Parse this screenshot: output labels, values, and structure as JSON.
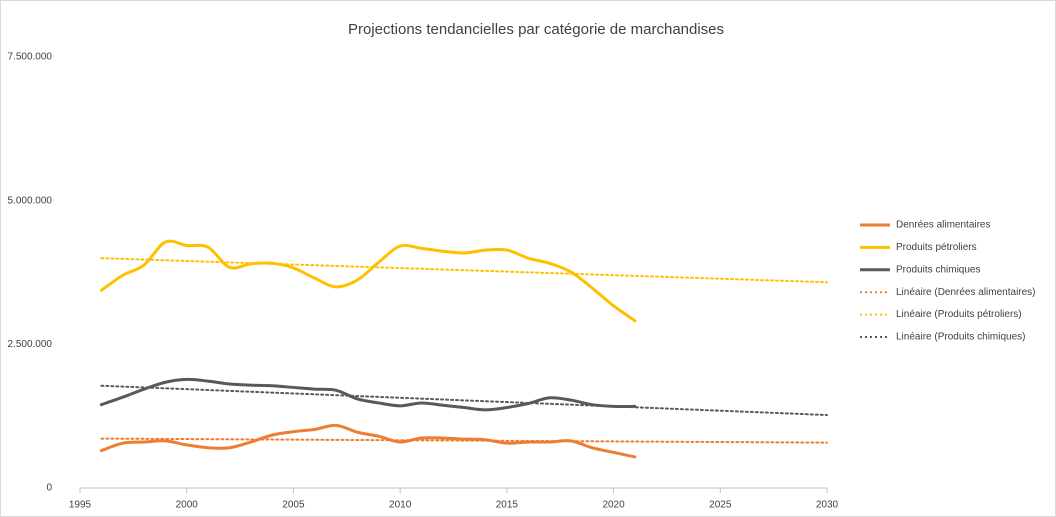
{
  "chart_data": {
    "type": "line",
    "title": "Projections tendancielles par catégorie de marchandises",
    "x": [
      1996,
      1997,
      1998,
      1999,
      2000,
      2001,
      2002,
      2003,
      2004,
      2005,
      2006,
      2007,
      2008,
      2009,
      2010,
      2011,
      2012,
      2013,
      2014,
      2015,
      2016,
      2017,
      2018,
      2019,
      2020,
      2021
    ],
    "xlim": [
      1995,
      2030
    ],
    "xticks": [
      1995,
      2000,
      2005,
      2010,
      2015,
      2020,
      2025,
      2030
    ],
    "ylim": [
      0,
      7500000
    ],
    "yticks": [
      0,
      {
        "value": 2500000,
        "label": "2.500.000"
      },
      {
        "value": 5000000,
        "label": "5.000.000"
      },
      {
        "value": 7500000,
        "label": "7.500.000"
      }
    ],
    "grid": false,
    "smooth": true,
    "legend": "right",
    "series": [
      {
        "name": "Denrées alimentaires",
        "color": "#ed7d31",
        "values": [
          650000,
          780000,
          800000,
          820000,
          750000,
          700000,
          700000,
          800000,
          920000,
          980000,
          1020000,
          1090000,
          970000,
          900000,
          800000,
          870000,
          870000,
          850000,
          840000,
          780000,
          800000,
          800000,
          820000,
          700000,
          620000,
          540000
        ]
      },
      {
        "name": "Produits pétroliers",
        "color": "#ffc000",
        "values": [
          3440000,
          3700000,
          3880000,
          4280000,
          4220000,
          4190000,
          3840000,
          3900000,
          3910000,
          3830000,
          3650000,
          3500000,
          3620000,
          3930000,
          4210000,
          4170000,
          4120000,
          4090000,
          4140000,
          4140000,
          4000000,
          3910000,
          3760000,
          3480000,
          3170000,
          2910000
        ]
      },
      {
        "name": "Produits chimiques",
        "color": "#595959",
        "values": [
          1450000,
          1580000,
          1720000,
          1840000,
          1890000,
          1860000,
          1810000,
          1790000,
          1780000,
          1750000,
          1720000,
          1700000,
          1550000,
          1480000,
          1430000,
          1480000,
          1440000,
          1400000,
          1360000,
          1400000,
          1470000,
          1570000,
          1530000,
          1450000,
          1420000,
          1420000
        ]
      },
      {
        "name": "Linéaire (Denrées alimentaires)",
        "color": "#ed7d31",
        "dashed": true,
        "x": [
          1996,
          2030
        ],
        "values": [
          860000,
          790000
        ]
      },
      {
        "name": "Linéaire (Produits pétroliers)",
        "color": "#ffc000",
        "dashed": true,
        "x": [
          1996,
          2030
        ],
        "values": [
          4000000,
          3580000
        ]
      },
      {
        "name": "Linéaire (Produits chimiques)",
        "color": "#595959",
        "dashed": true,
        "x": [
          1996,
          2030
        ],
        "values": [
          1780000,
          1270000
        ]
      }
    ]
  }
}
